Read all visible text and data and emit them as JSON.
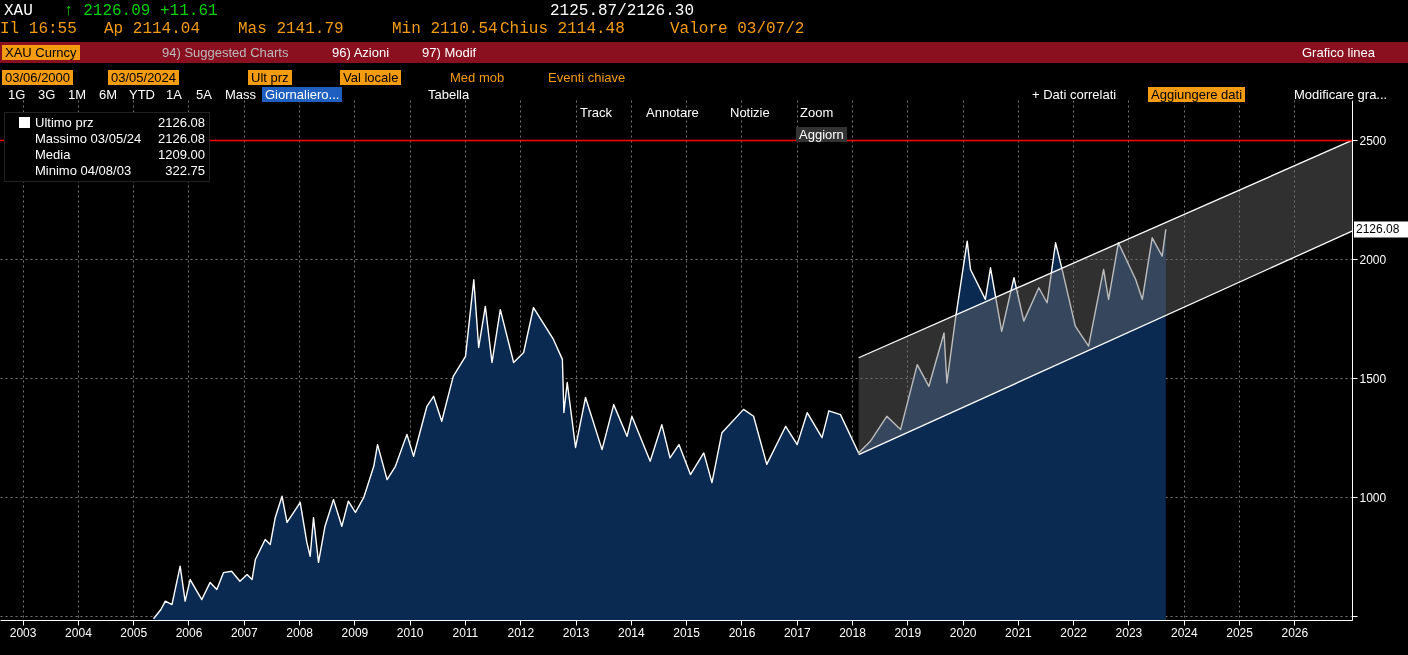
{
  "chart_data": {
    "type": "area",
    "legend": "top left",
    "grid": true,
    "xlim": [
      "2003-02-03",
      "2027-07-18"
    ],
    "xticks": [
      {
        "value": "2003-07-02",
        "label": "2003"
      },
      {
        "value": "2004-07-02",
        "label": "2004"
      },
      {
        "value": "2005-07-02",
        "label": "2005"
      },
      {
        "value": "2006-07-02",
        "label": "2006"
      },
      {
        "value": "2007-07-02",
        "label": "2007"
      },
      {
        "value": "2008-07-02",
        "label": "2008"
      },
      {
        "value": "2009-07-02",
        "label": "2009"
      },
      {
        "value": "2010-07-02",
        "label": "2010"
      },
      {
        "value": "2011-07-02",
        "label": "2011"
      },
      {
        "value": "2012-07-02",
        "label": "2012"
      },
      {
        "value": "2013-07-02",
        "label": "2013"
      },
      {
        "value": "2014-07-02",
        "label": "2014"
      },
      {
        "value": "2015-07-02",
        "label": "2015"
      },
      {
        "value": "2016-07-02",
        "label": "2016"
      },
      {
        "value": "2017-07-02",
        "label": "2017"
      },
      {
        "value": "2018-07-02",
        "label": "2018"
      },
      {
        "value": "2019-07-02",
        "label": "2019"
      },
      {
        "value": "2020-07-02",
        "label": "2020"
      },
      {
        "value": "2021-07-02",
        "label": "2021"
      },
      {
        "value": "2022-07-02",
        "label": "2022"
      },
      {
        "value": "2023-07-02",
        "label": "2023"
      },
      {
        "value": "2024-07-02",
        "label": "2024"
      },
      {
        "value": "2025-07-02",
        "label": "2025"
      },
      {
        "value": "2026-07-02",
        "label": "2026"
      }
    ],
    "ylim": [
      485,
      2670
    ],
    "yticks": [
      {
        "value": 500,
        "label": null
      },
      1000,
      1500,
      2000,
      2500
    ],
    "series": [
      {
        "name": "Ultimo prz",
        "color": "#ffffff",
        "x": [
          "2005-11-13",
          "2006-01-01",
          "2006-01-30",
          "2006-03-15",
          "2006-05-08",
          "2006-06-10",
          "2006-07-13",
          "2006-09-28",
          "2006-11-22",
          "2007-01-05",
          "2007-02-18",
          "2007-04-13",
          "2007-06-07",
          "2007-07-24",
          "2007-08-26",
          "2007-09-17",
          "2007-11-21",
          "2007-12-24",
          "2008-01-26",
          "2008-03-11",
          "2008-04-13",
          "2008-05-27",
          "2008-07-09",
          "2008-08-22",
          "2008-09-13",
          "2008-10-05",
          "2008-11-07",
          "2008-12-20",
          "2009-02-14",
          "2009-04-10",
          "2009-05-23",
          "2009-07-09",
          "2009-09-02",
          "2009-11-07",
          "2009-12-02",
          "2010-02-03",
          "2010-03-30",
          "2010-06-14",
          "2010-07-28",
          "2010-10-24",
          "2010-12-07",
          "2011-01-30",
          "2011-04-16",
          "2011-07-06",
          "2011-08-30",
          "2011-10-01",
          "2011-11-14",
          "2011-12-28",
          "2012-02-21",
          "2012-05-19",
          "2012-07-24",
          "2012-09-27",
          "2013-02-06",
          "2013-04-06",
          "2013-04-16",
          "2013-05-08",
          "2013-07-02",
          "2013-09-06",
          "2013-12-24",
          "2014-03-11",
          "2014-06-07",
          "2014-07-09",
          "2014-11-07",
          "2015-01-23",
          "2015-03-18",
          "2015-05-16",
          "2015-07-31",
          "2015-10-27",
          "2015-12-20",
          "2016-02-24",
          "2016-07-16",
          "2016-09-20",
          "2016-12-16",
          "2017-04-20",
          "2017-07-05",
          "2017-09-09",
          "2017-12-16",
          "2018-01-30",
          "2018-04-17",
          "2018-08-15",
          "2018-10-31",
          "2019-02-17",
          "2019-05-19",
          "2019-09-06",
          "2019-11-22",
          "2020-03-01",
          "2020-03-20",
          "2020-05-15",
          "2020-08-01",
          "2020-08-23",
          "2020-11-29",
          "2021-01-02",
          "2021-03-17",
          "2021-06-06",
          "2021-08-10",
          "2021-11-17",
          "2022-01-11",
          "2022-03-08",
          "2022-04-20",
          "2022-07-16",
          "2022-10-12",
          "2023-01-19",
          "2023-02-21",
          "2023-04-27",
          "2023-08-19",
          "2023-10-02",
          "2023-12-06",
          "2024-02-10",
          "2024-03-05"
        ],
        "values": [
          490,
          529,
          564,
          550,
          711,
          564,
          655,
          571,
          643,
          613,
          684,
          690,
          648,
          676,
          655,
          739,
          823,
          802,
          915,
          1005,
          895,
          937,
          979,
          811,
          753,
          915,
          727,
          879,
          991,
          879,
          984,
          937,
          1000,
          1131,
          1222,
          1075,
          1131,
          1265,
          1173,
          1383,
          1425,
          1320,
          1509,
          1593,
          1915,
          1630,
          1803,
          1567,
          1789,
          1567,
          1609,
          1798,
          1664,
          1580,
          1357,
          1483,
          1210,
          1420,
          1201,
          1390,
          1257,
          1341,
          1152,
          1306,
          1166,
          1222,
          1096,
          1187,
          1062,
          1272,
          1370,
          1341,
          1139,
          1299,
          1222,
          1356,
          1251,
          1364,
          1348,
          1187,
          1236,
          1341,
          1285,
          1558,
          1467,
          1691,
          1481,
          1748,
          2077,
          1958,
          1832,
          1965,
          1698,
          1923,
          1741,
          1881,
          1818,
          2070,
          1958,
          1720,
          1636,
          1958,
          1832,
          2070,
          1916,
          1832,
          2091,
          2014,
          2126.08
        ]
      },
      {
        "type": "line",
        "color": "#ffffff",
        "x": [
          "2018-08-15",
          "2027-07-18"
        ],
        "values": [
          1180,
          2119
        ]
      },
      {
        "type": "line",
        "color": "#ffffff",
        "x": [
          "2018-08-15",
          "2027-07-18"
        ],
        "values": [
          1587,
          2500
        ]
      }
    ],
    "ref_lines": [
      {
        "axis": "y",
        "value": 2500,
        "color": "#ff0000"
      }
    ],
    "annotations": [
      "XAU",
      "↑ 2126.09",
      "+11.61",
      "2125.87/2126.30",
      "Il 16:55",
      "Ap 2114.04",
      "Mas 2141.79",
      "Min 2110.54",
      "Chius 2114.48",
      "Valore 03/07/2",
      "XAU Curncy",
      "94) Suggested Charts",
      "96) Azioni",
      "97) Modif",
      "Grafico linea",
      "03/06/2000",
      "03/05/2024",
      "Ult prz",
      "Val locale",
      "Med mob",
      "Eventi chiave",
      "1G",
      "3G",
      "1M",
      "6M",
      "YTD",
      "1A",
      "5A",
      "Mass",
      "Giornaliero...",
      "Tabella",
      "+ Dati correlati",
      "Aggiungere dati",
      "Modificare gra...",
      "Track",
      "Annotare",
      "Notizie",
      "Zoom",
      "Aggiorn",
      "2126.08",
      "Massimo 03/05/24",
      "2126.08",
      "Media",
      "1209.00",
      "Minimo 04/08/03",
      "322.75",
      "2126.08"
    ]
  }
}
